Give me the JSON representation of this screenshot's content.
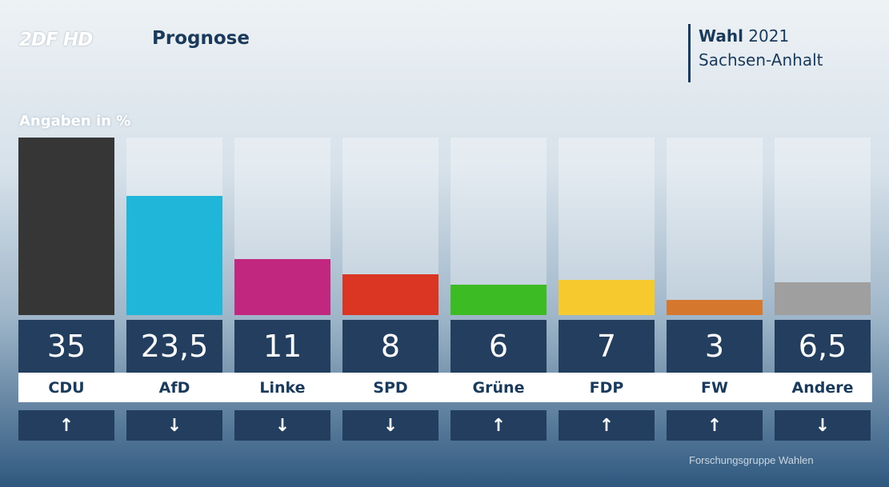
{
  "header": {
    "logo": "2DF HD",
    "title": "Prognose",
    "election_strong": "Wahl",
    "election_year": "2021",
    "election_region": "Sachsen-Anhalt"
  },
  "unit_label": "Angaben in %",
  "source": "Forschungsgruppe Wahlen",
  "chart_data": {
    "type": "bar",
    "title": "Prognose",
    "ylabel": "Angaben in %",
    "ylim": [
      0,
      35
    ],
    "categories": [
      "CDU",
      "AfD",
      "Linke",
      "SPD",
      "Grüne",
      "FDP",
      "FW",
      "Andere"
    ],
    "values": [
      35,
      23.5,
      11,
      8,
      6,
      7,
      3,
      6.5
    ],
    "value_labels": [
      "35",
      "23,5",
      "11",
      "8",
      "6",
      "7",
      "3",
      "6,5"
    ],
    "colors": [
      "#363636",
      "#1fb6d9",
      "#c2277f",
      "#db3523",
      "#3dbb24",
      "#f6ca2f",
      "#d6772e",
      "#9f9f9f"
    ],
    "trends": [
      "↑",
      "↓",
      "↓",
      "↓",
      "↑",
      "↑",
      "↑",
      "↓"
    ]
  }
}
